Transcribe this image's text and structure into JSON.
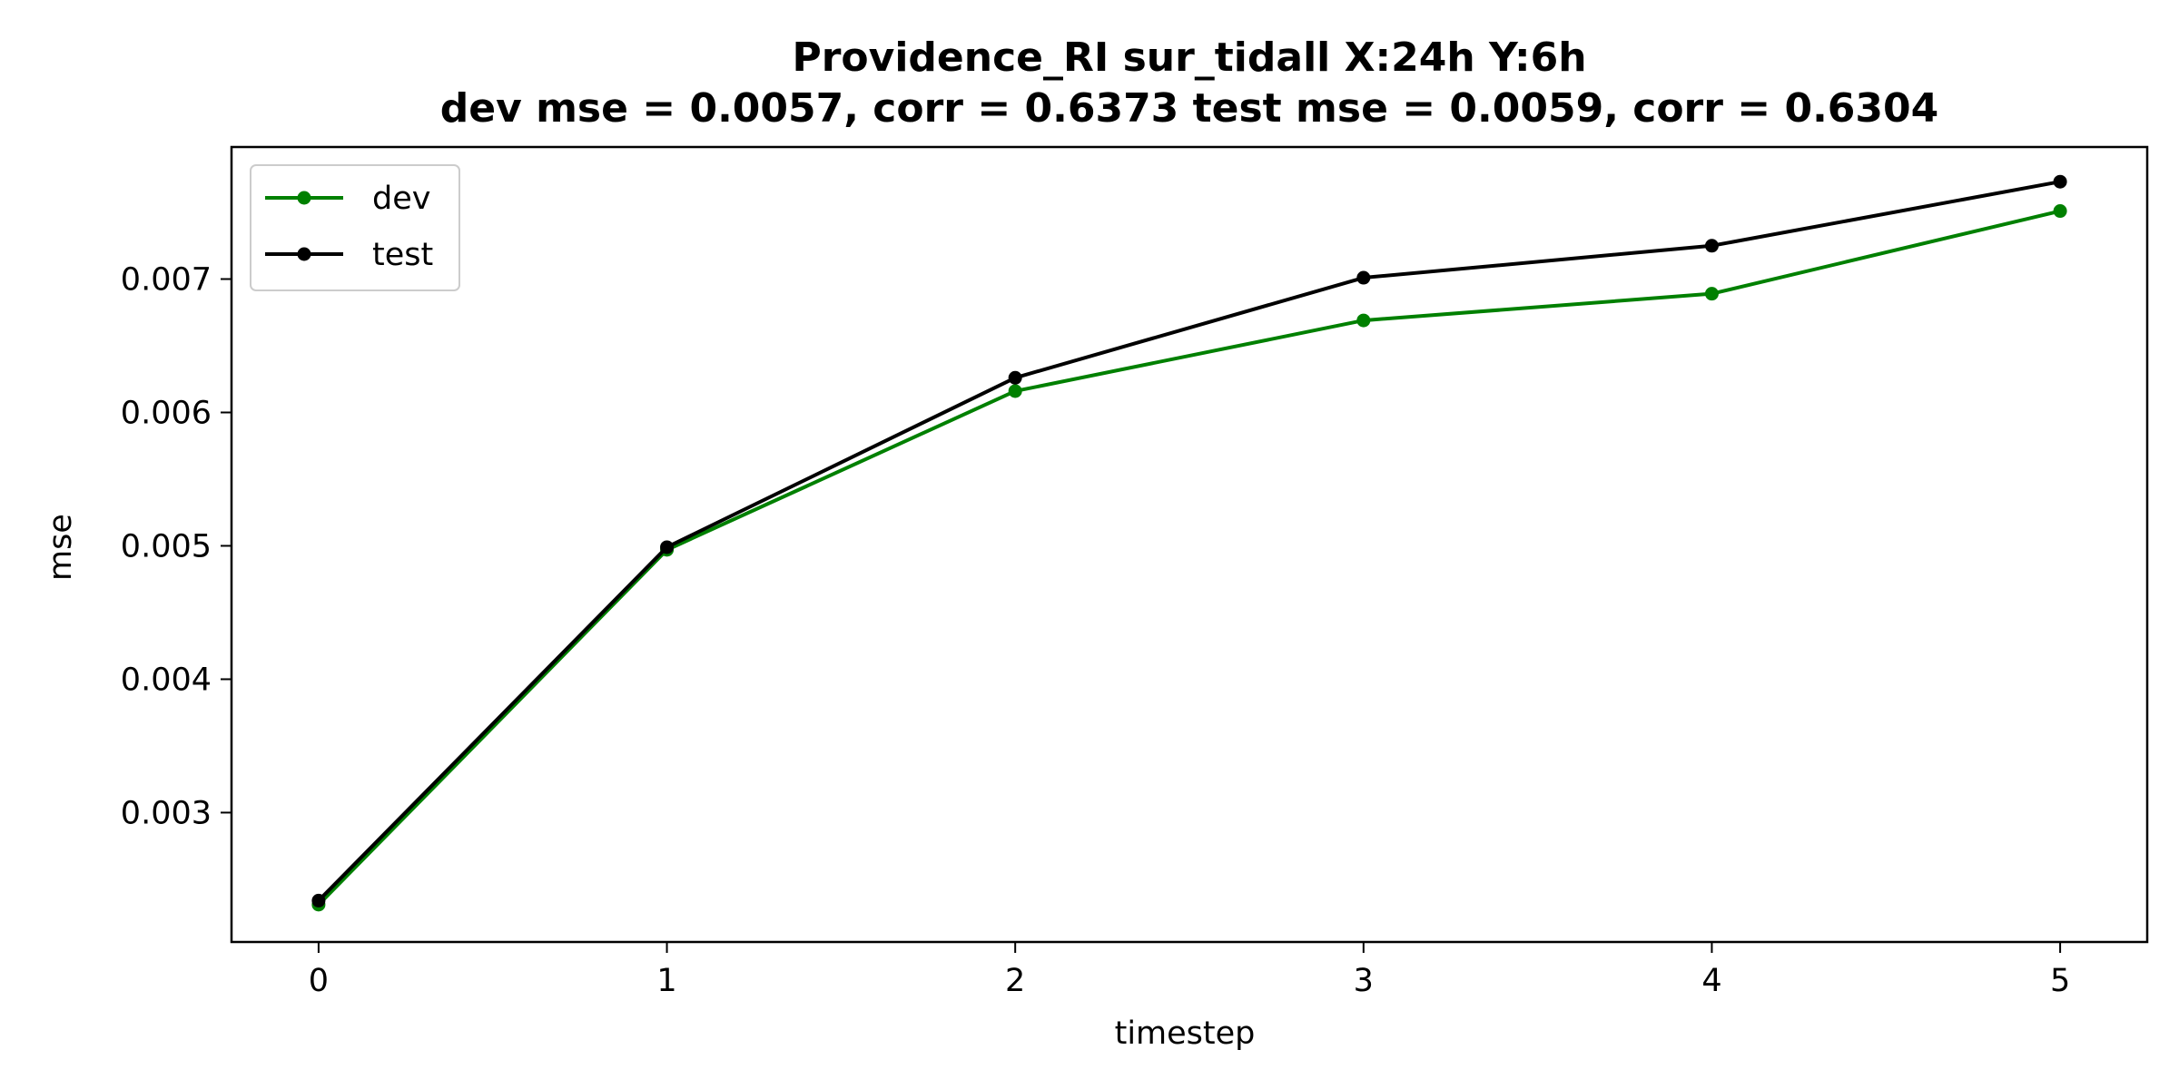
{
  "chart_data": {
    "type": "line",
    "title": "Providence_RI   sur_tidall   X:24h   Y:6h",
    "subtitle": "dev mse = 0.0057, corr = 0.6373   test mse = 0.0059, corr = 0.6304",
    "xlabel": "timestep",
    "ylabel": "mse",
    "x": [
      0,
      1,
      2,
      3,
      4,
      5
    ],
    "xticks": [
      0,
      1,
      2,
      3,
      4,
      5
    ],
    "xtick_labels": [
      "0",
      "1",
      "2",
      "3",
      "4",
      "5"
    ],
    "yticks": [
      0.003,
      0.004,
      0.005,
      0.006,
      0.007
    ],
    "ytick_labels": [
      "0.003",
      "0.004",
      "0.005",
      "0.006",
      "0.007"
    ],
    "xlim": [
      -0.25,
      5.25
    ],
    "ylim": [
      0.00203,
      0.00799
    ],
    "grid": false,
    "legend_position": "upper-left",
    "series": [
      {
        "name": "dev",
        "color": "#008000",
        "values": [
          0.00231,
          0.00497,
          0.00616,
          0.00669,
          0.00689,
          0.00751
        ]
      },
      {
        "name": "test",
        "color": "#000000",
        "values": [
          0.00234,
          0.00499,
          0.00626,
          0.00701,
          0.00725,
          0.00773
        ]
      }
    ]
  }
}
